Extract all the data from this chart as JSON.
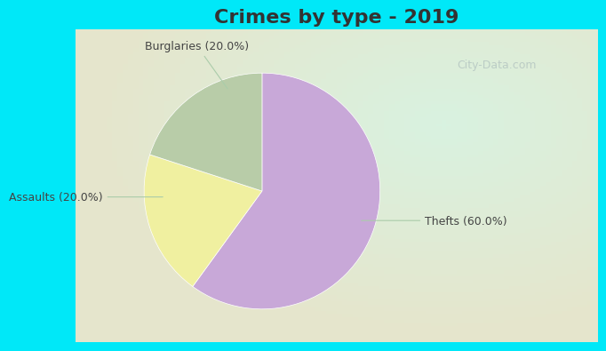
{
  "title": "Crimes by type - 2019",
  "slices": [
    {
      "label": "Thefts (60.0%)",
      "value": 60,
      "color": "#c8a8d8"
    },
    {
      "label": "Burglaries (20.0%)",
      "value": 20,
      "color": "#f0f0a0"
    },
    {
      "label": "Assaults (20.0%)",
      "value": 20,
      "color": "#b8cca8"
    }
  ],
  "border_color": "#00e8f8",
  "bg_color": "#d0ece0",
  "title_fontsize": 16,
  "label_fontsize": 9,
  "watermark": "City-Data.com",
  "startangle": 90,
  "title_color": "#333333",
  "label_color": "#444444",
  "arrow_color": "#aaccaa"
}
